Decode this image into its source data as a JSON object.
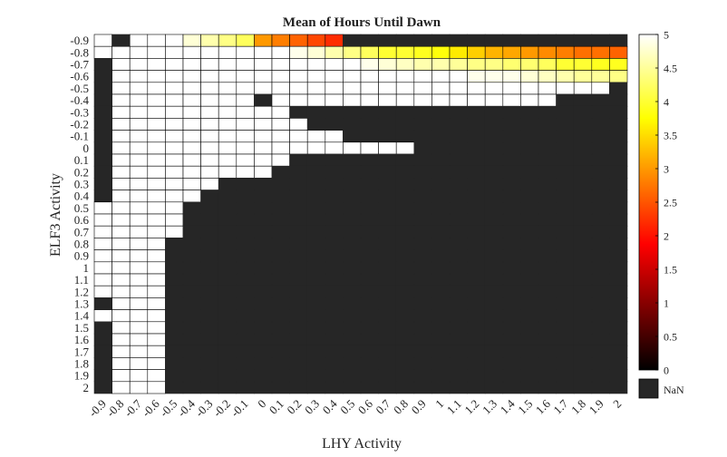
{
  "chart_data": {
    "type": "heatmap",
    "title": "Mean of Hours Until Dawn",
    "xlabel": "LHY Activity",
    "ylabel": "ELF3 Activity",
    "x_categories": [
      "-0.9",
      "-0.8",
      "-0.7",
      "-0.6",
      "-0.5",
      "-0.4",
      "-0.3",
      "-0.2",
      "-0.1",
      "0",
      "0.1",
      "0.2",
      "0.3",
      "0.4",
      "0.5",
      "0.6",
      "0.7",
      "0.8",
      "0.9",
      "1",
      "1.1",
      "1.2",
      "1.3",
      "1.4",
      "1.5",
      "1.6",
      "1.7",
      "1.8",
      "1.9",
      "2"
    ],
    "y_categories": [
      "-0.9",
      "-0.8",
      "-0.7",
      "-0.6",
      "-0.5",
      "-0.4",
      "-0.3",
      "-0.2",
      "-0.1",
      "0",
      "0.1",
      "0.2",
      "0.3",
      "0.4",
      "0.5",
      "0.6",
      "0.7",
      "0.8",
      "0.9",
      "1",
      "1.1",
      "1.2",
      "1.3",
      "1.4",
      "1.5",
      "1.6",
      "1.7",
      "1.8",
      "1.9",
      "2"
    ],
    "values": [
      [
        5,
        null,
        5,
        5,
        5,
        4.8,
        4.6,
        4.4,
        4.2,
        3.0,
        2.8,
        2.6,
        2.4,
        2.2,
        null,
        null,
        null,
        null,
        null,
        null,
        null,
        null,
        null,
        null,
        null,
        null,
        null,
        null,
        null,
        null
      ],
      [
        5,
        5,
        5,
        5,
        5,
        5,
        5,
        5,
        5,
        5,
        5,
        4.9,
        4.8,
        4.6,
        4.4,
        4.2,
        4.0,
        4.0,
        3.9,
        3.8,
        3.6,
        3.4,
        3.2,
        3.1,
        3.0,
        2.9,
        2.8,
        2.7,
        2.7,
        2.6
      ],
      [
        null,
        5,
        5,
        5,
        5,
        5,
        5,
        5,
        5,
        5,
        5,
        5,
        5,
        5,
        5,
        4.9,
        4.8,
        4.7,
        4.6,
        4.6,
        4.5,
        4.4,
        4.4,
        4.3,
        4.3,
        4.2,
        4.0,
        4.0,
        3.9,
        3.9
      ],
      [
        null,
        5,
        5,
        5,
        5,
        5,
        5,
        5,
        5,
        5,
        5,
        5,
        5,
        5,
        5,
        5,
        5,
        5,
        5,
        5,
        5,
        4.9,
        4.9,
        4.9,
        4.8,
        4.7,
        4.6,
        4.5,
        4.5,
        4.4
      ],
      [
        null,
        5,
        5,
        5,
        5,
        5,
        5,
        5,
        5,
        5,
        5,
        5,
        5,
        5,
        5,
        5,
        5,
        5,
        5,
        5,
        5,
        5,
        5,
        5,
        5,
        5,
        5,
        5,
        5,
        null
      ],
      [
        null,
        5,
        5,
        5,
        5,
        5,
        5,
        5,
        5,
        null,
        5,
        5,
        5,
        5,
        5,
        5,
        5,
        5,
        5,
        5,
        5,
        5,
        5,
        5,
        5,
        5,
        null,
        null,
        null,
        null
      ],
      [
        null,
        5,
        5,
        5,
        5,
        5,
        5,
        5,
        5,
        5,
        5,
        null,
        null,
        null,
        null,
        null,
        null,
        null,
        null,
        null,
        null,
        null,
        null,
        null,
        null,
        null,
        null,
        null,
        null,
        null
      ],
      [
        null,
        5,
        5,
        5,
        5,
        5,
        5,
        5,
        5,
        5,
        5,
        5,
        null,
        null,
        null,
        null,
        null,
        null,
        null,
        null,
        null,
        null,
        null,
        null,
        null,
        null,
        null,
        null,
        null,
        null
      ],
      [
        null,
        5,
        5,
        5,
        5,
        5,
        5,
        5,
        5,
        5,
        5,
        5,
        5,
        5,
        null,
        null,
        null,
        null,
        null,
        null,
        null,
        null,
        null,
        null,
        null,
        null,
        null,
        null,
        null,
        null
      ],
      [
        null,
        5,
        5,
        5,
        5,
        5,
        5,
        5,
        5,
        5,
        5,
        5,
        5,
        5,
        5,
        5,
        5,
        5,
        null,
        null,
        null,
        null,
        null,
        null,
        null,
        null,
        null,
        null,
        null,
        null
      ],
      [
        null,
        5,
        5,
        5,
        5,
        5,
        5,
        5,
        5,
        5,
        5,
        null,
        null,
        null,
        null,
        null,
        null,
        null,
        null,
        null,
        null,
        null,
        null,
        null,
        null,
        null,
        null,
        null,
        null,
        null
      ],
      [
        null,
        5,
        5,
        5,
        5,
        5,
        5,
        5,
        5,
        5,
        null,
        null,
        null,
        null,
        null,
        null,
        null,
        null,
        null,
        null,
        null,
        null,
        null,
        null,
        null,
        null,
        null,
        null,
        null,
        null
      ],
      [
        null,
        5,
        5,
        5,
        5,
        5,
        5,
        null,
        null,
        null,
        null,
        null,
        null,
        null,
        null,
        null,
        null,
        null,
        null,
        null,
        null,
        null,
        null,
        null,
        null,
        null,
        null,
        null,
        null,
        null
      ],
      [
        null,
        5,
        5,
        5,
        5,
        5,
        null,
        null,
        null,
        null,
        null,
        null,
        null,
        null,
        null,
        null,
        null,
        null,
        null,
        null,
        null,
        null,
        null,
        null,
        null,
        null,
        null,
        null,
        null,
        null
      ],
      [
        5,
        5,
        5,
        5,
        5,
        null,
        null,
        null,
        null,
        null,
        null,
        null,
        null,
        null,
        null,
        null,
        null,
        null,
        null,
        null,
        null,
        null,
        null,
        null,
        null,
        null,
        null,
        null,
        null,
        null
      ],
      [
        5,
        5,
        5,
        5,
        5,
        null,
        null,
        null,
        null,
        null,
        null,
        null,
        null,
        null,
        null,
        null,
        null,
        null,
        null,
        null,
        null,
        null,
        null,
        null,
        null,
        null,
        null,
        null,
        null,
        null
      ],
      [
        5,
        5,
        5,
        5,
        5,
        null,
        null,
        null,
        null,
        null,
        null,
        null,
        null,
        null,
        null,
        null,
        null,
        null,
        null,
        null,
        null,
        null,
        null,
        null,
        null,
        null,
        null,
        null,
        null,
        null
      ],
      [
        5,
        5,
        5,
        5,
        null,
        null,
        null,
        null,
        null,
        null,
        null,
        null,
        null,
        null,
        null,
        null,
        null,
        null,
        null,
        null,
        null,
        null,
        null,
        null,
        null,
        null,
        null,
        null,
        null,
        null
      ],
      [
        5,
        5,
        5,
        5,
        null,
        null,
        null,
        null,
        null,
        null,
        null,
        null,
        null,
        null,
        null,
        null,
        null,
        null,
        null,
        null,
        null,
        null,
        null,
        null,
        null,
        null,
        null,
        null,
        null,
        null
      ],
      [
        5,
        5,
        5,
        5,
        null,
        null,
        null,
        null,
        null,
        null,
        null,
        null,
        null,
        null,
        null,
        null,
        null,
        null,
        null,
        null,
        null,
        null,
        null,
        null,
        null,
        null,
        null,
        null,
        null,
        null
      ],
      [
        5,
        5,
        5,
        5,
        null,
        null,
        null,
        null,
        null,
        null,
        null,
        null,
        null,
        null,
        null,
        null,
        null,
        null,
        null,
        null,
        null,
        null,
        null,
        null,
        null,
        null,
        null,
        null,
        null,
        null
      ],
      [
        5,
        5,
        5,
        5,
        null,
        null,
        null,
        null,
        null,
        null,
        null,
        null,
        null,
        null,
        null,
        null,
        null,
        null,
        null,
        null,
        null,
        null,
        null,
        null,
        null,
        null,
        null,
        null,
        null,
        null
      ],
      [
        null,
        5,
        5,
        5,
        null,
        null,
        null,
        null,
        null,
        null,
        null,
        null,
        null,
        null,
        null,
        null,
        null,
        null,
        null,
        null,
        null,
        null,
        null,
        null,
        null,
        null,
        null,
        null,
        null,
        null
      ],
      [
        5,
        5,
        5,
        5,
        null,
        null,
        null,
        null,
        null,
        null,
        null,
        null,
        null,
        null,
        null,
        null,
        null,
        null,
        null,
        null,
        null,
        null,
        null,
        null,
        null,
        null,
        null,
        null,
        null,
        null
      ],
      [
        null,
        5,
        5,
        5,
        null,
        null,
        null,
        null,
        null,
        null,
        null,
        null,
        null,
        null,
        null,
        null,
        null,
        null,
        null,
        null,
        null,
        null,
        null,
        null,
        null,
        null,
        null,
        null,
        null,
        null
      ],
      [
        null,
        5,
        5,
        5,
        null,
        null,
        null,
        null,
        null,
        null,
        null,
        null,
        null,
        null,
        null,
        null,
        null,
        null,
        null,
        null,
        null,
        null,
        null,
        null,
        null,
        null,
        null,
        null,
        null,
        null
      ],
      [
        null,
        5,
        5,
        5,
        null,
        null,
        null,
        null,
        null,
        null,
        null,
        null,
        null,
        null,
        null,
        null,
        null,
        null,
        null,
        null,
        null,
        null,
        null,
        null,
        null,
        null,
        null,
        null,
        null,
        null
      ],
      [
        null,
        5,
        5,
        5,
        null,
        null,
        null,
        null,
        null,
        null,
        null,
        null,
        null,
        null,
        null,
        null,
        null,
        null,
        null,
        null,
        null,
        null,
        null,
        null,
        null,
        null,
        null,
        null,
        null,
        null
      ],
      [
        null,
        5,
        5,
        5,
        null,
        null,
        null,
        null,
        null,
        null,
        null,
        null,
        null,
        null,
        null,
        null,
        null,
        null,
        null,
        null,
        null,
        null,
        null,
        null,
        null,
        null,
        null,
        null,
        null,
        null
      ],
      [
        null,
        5,
        5,
        5,
        null,
        null,
        null,
        null,
        null,
        null,
        null,
        null,
        null,
        null,
        null,
        null,
        null,
        null,
        null,
        null,
        null,
        null,
        null,
        null,
        null,
        null,
        null,
        null,
        null,
        null
      ]
    ],
    "colorbar": {
      "min": 0,
      "max": 5,
      "ticks": [
        "0",
        "0.5",
        "1",
        "1.5",
        "2",
        "2.5",
        "3",
        "3.5",
        "4",
        "4.5",
        "5"
      ],
      "nan_label": "NaN"
    },
    "colormap": "hot",
    "nan_color": "#262626",
    "grid_color": "#000000"
  }
}
